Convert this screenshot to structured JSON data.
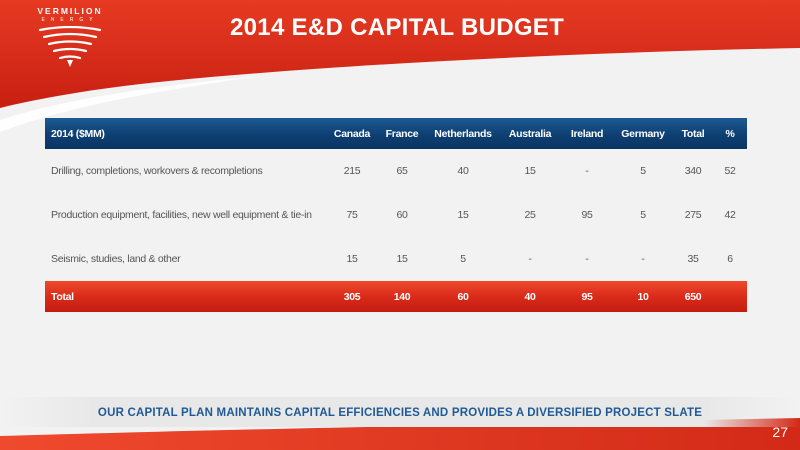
{
  "brand": {
    "name": "VERMILION",
    "sub": "ENERGY",
    "logo_icon": "vermilion-wings-icon",
    "red": "#e0311d",
    "blue": "#0e3f72"
  },
  "title": "2014 E&D CAPITAL BUDGET",
  "table": {
    "headers": [
      "2014 ($MM)",
      "Canada",
      "France",
      "Netherlands",
      "Australia",
      "Ireland",
      "Germany",
      "Total",
      "%"
    ],
    "rows": [
      {
        "label": "Drilling, completions, workovers & recompletions",
        "values": [
          "215",
          "65",
          "40",
          "15",
          "-",
          "5",
          "340",
          "52"
        ]
      },
      {
        "label": "Production equipment, facilities, new well equipment & tie-in",
        "values": [
          "75",
          "60",
          "15",
          "25",
          "95",
          "5",
          "275",
          "42"
        ]
      },
      {
        "label": "Seismic, studies, land & other",
        "values": [
          "15",
          "15",
          "5",
          "-",
          "-",
          "-",
          "35",
          "6"
        ]
      }
    ],
    "total": {
      "label": "Total",
      "values": [
        "305",
        "140",
        "60",
        "40",
        "95",
        "10",
        "650",
        ""
      ]
    }
  },
  "footer": "OUR CAPITAL PLAN MAINTAINS CAPITAL EFFICIENCIES AND PROVIDES A DIVERSIFIED PROJECT SLATE",
  "page_number": "27"
}
